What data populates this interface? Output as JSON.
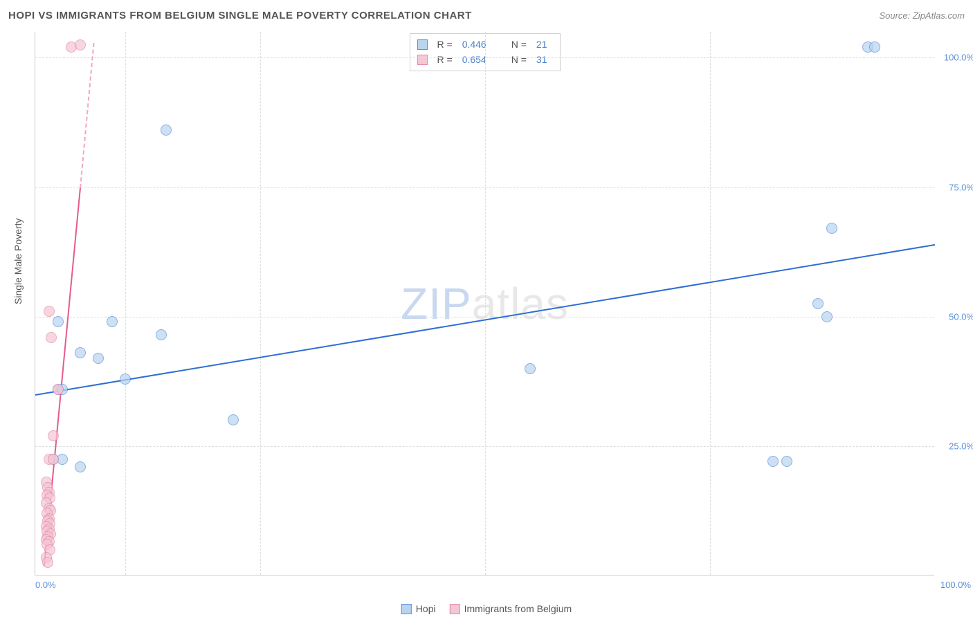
{
  "title": "HOPI VS IMMIGRANTS FROM BELGIUM SINGLE MALE POVERTY CORRELATION CHART",
  "source": "Source: ZipAtlas.com",
  "ylabel": "Single Male Poverty",
  "watermark_a": "ZIP",
  "watermark_b": "atlas",
  "chart": {
    "type": "scatter",
    "xlim": [
      0,
      100
    ],
    "ylim": [
      0,
      105
    ],
    "background_color": "#ffffff",
    "grid_color": "#dddddd",
    "axis_color": "#cccccc",
    "tick_color": "#5a8fd6",
    "tick_fontsize": 13,
    "y_ticks": [
      25,
      50,
      75,
      100
    ],
    "y_tick_labels": [
      "25.0%",
      "50.0%",
      "75.0%",
      "100.0%"
    ],
    "x_ticks": [
      0,
      100
    ],
    "x_tick_labels": [
      "0.0%",
      "100.0%"
    ],
    "x_grid_positions": [
      10,
      25,
      50,
      75
    ],
    "marker_size": 16,
    "marker_opacity": 0.7,
    "series": [
      {
        "name": "Hopi",
        "color_fill": "#b8d4f0",
        "color_stroke": "#5a8fd6",
        "R": "0.446",
        "N": "21",
        "trend": {
          "x1": 0,
          "y1": 35,
          "x2": 100,
          "y2": 64,
          "color": "#2e6fd0",
          "width": 2,
          "dash": false
        },
        "points": [
          {
            "x": 92.5,
            "y": 102
          },
          {
            "x": 93.3,
            "y": 102
          },
          {
            "x": 14.5,
            "y": 86
          },
          {
            "x": 88.5,
            "y": 67
          },
          {
            "x": 87,
            "y": 52.5
          },
          {
            "x": 88,
            "y": 50
          },
          {
            "x": 2.5,
            "y": 49
          },
          {
            "x": 8.5,
            "y": 49
          },
          {
            "x": 14,
            "y": 46.5
          },
          {
            "x": 5,
            "y": 43
          },
          {
            "x": 7,
            "y": 42
          },
          {
            "x": 55,
            "y": 40
          },
          {
            "x": 10,
            "y": 38
          },
          {
            "x": 2.5,
            "y": 36
          },
          {
            "x": 3,
            "y": 36
          },
          {
            "x": 22,
            "y": 30
          },
          {
            "x": 2,
            "y": 22.5
          },
          {
            "x": 3,
            "y": 22.5
          },
          {
            "x": 82,
            "y": 22
          },
          {
            "x": 83.5,
            "y": 22
          },
          {
            "x": 5,
            "y": 21
          }
        ]
      },
      {
        "name": "Immigrants from Belgium",
        "color_fill": "#f5c6d4",
        "color_stroke": "#e389a5",
        "R": "0.654",
        "N": "31",
        "trend": {
          "x1": 1,
          "y1": 2,
          "x2": 5,
          "y2": 75,
          "color": "#e75a8a",
          "width": 2,
          "dash": false
        },
        "trend_ext": {
          "x1": 5,
          "y1": 75,
          "x2": 6.5,
          "y2": 103,
          "color": "#f0a8bd",
          "width": 2,
          "dash": true
        },
        "points": [
          {
            "x": 4,
            "y": 102
          },
          {
            "x": 5,
            "y": 102.5
          },
          {
            "x": 1.5,
            "y": 51
          },
          {
            "x": 1.8,
            "y": 46
          },
          {
            "x": 2.5,
            "y": 36
          },
          {
            "x": 2,
            "y": 27
          },
          {
            "x": 1.5,
            "y": 22.5
          },
          {
            "x": 2,
            "y": 22.5
          },
          {
            "x": 1.2,
            "y": 18
          },
          {
            "x": 1.4,
            "y": 17
          },
          {
            "x": 1.5,
            "y": 16
          },
          {
            "x": 1.3,
            "y": 15.5
          },
          {
            "x": 1.6,
            "y": 15
          },
          {
            "x": 1.2,
            "y": 14
          },
          {
            "x": 1.5,
            "y": 13
          },
          {
            "x": 1.7,
            "y": 12.5
          },
          {
            "x": 1.3,
            "y": 12
          },
          {
            "x": 1.5,
            "y": 11
          },
          {
            "x": 1.4,
            "y": 10.5
          },
          {
            "x": 1.6,
            "y": 10
          },
          {
            "x": 1.2,
            "y": 9.5
          },
          {
            "x": 1.5,
            "y": 9
          },
          {
            "x": 1.3,
            "y": 8.5
          },
          {
            "x": 1.7,
            "y": 8
          },
          {
            "x": 1.4,
            "y": 7.5
          },
          {
            "x": 1.2,
            "y": 7
          },
          {
            "x": 1.5,
            "y": 6.5
          },
          {
            "x": 1.3,
            "y": 6
          },
          {
            "x": 1.6,
            "y": 5
          },
          {
            "x": 1.2,
            "y": 3.5
          },
          {
            "x": 1.4,
            "y": 2.5
          }
        ]
      }
    ]
  },
  "legend_top": {
    "rows": [
      {
        "swatch_fill": "#b8d4f0",
        "swatch_stroke": "#5a8fd6",
        "r_label": "R =",
        "r_val": "0.446",
        "n_label": "N =",
        "n_val": "21"
      },
      {
        "swatch_fill": "#f5c6d4",
        "swatch_stroke": "#e389a5",
        "r_label": "R =",
        "r_val": "0.654",
        "n_label": "N =",
        "n_val": "31"
      }
    ]
  },
  "legend_bottom": {
    "items": [
      {
        "label": "Hopi",
        "fill": "#b8d4f0",
        "stroke": "#5a8fd6"
      },
      {
        "label": "Immigrants from Belgium",
        "fill": "#f5c6d4",
        "stroke": "#e389a5"
      }
    ]
  }
}
